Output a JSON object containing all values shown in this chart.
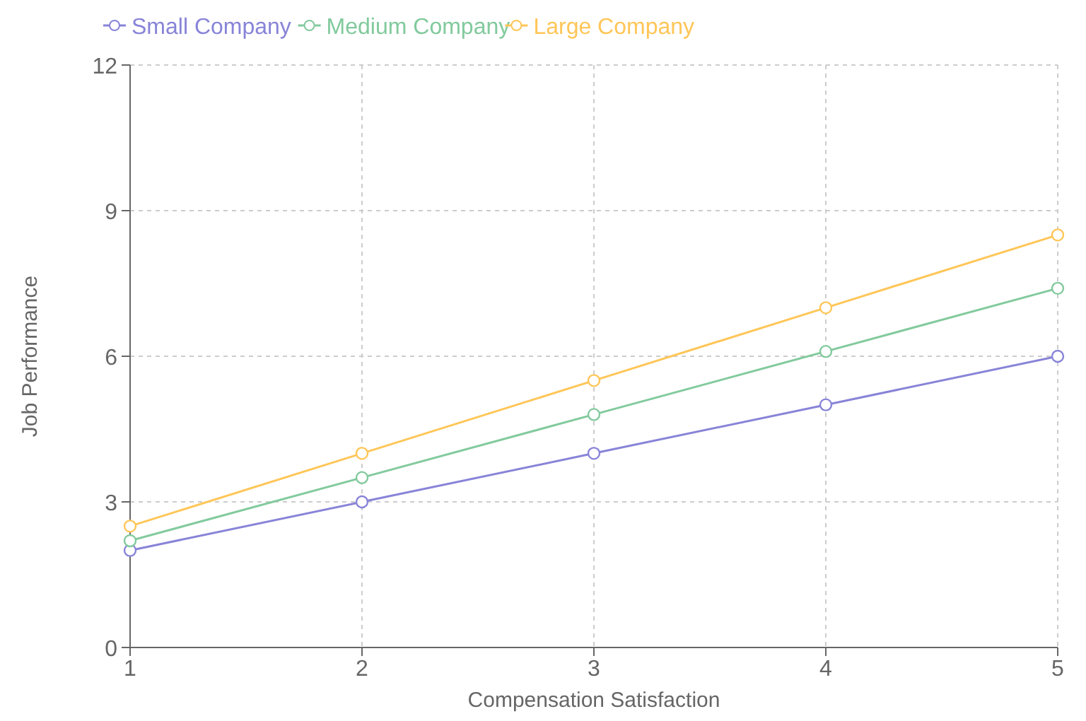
{
  "chart_data": {
    "type": "line",
    "xlabel": "Compensation Satisfaction",
    "ylabel": "Job Performance",
    "x": [
      1,
      2,
      3,
      4,
      5
    ],
    "series": [
      {
        "name": "Small Company",
        "color": "#8884d8",
        "values": [
          2,
          3,
          4,
          5,
          6
        ]
      },
      {
        "name": "Medium Company",
        "color": "#82ca9d",
        "values": [
          2.2,
          3.5,
          4.8,
          6.1,
          7.4
        ]
      },
      {
        "name": "Large Company",
        "color": "#ffc658",
        "values": [
          2.5,
          4,
          5.5,
          7,
          8.5
        ]
      }
    ],
    "xlim": [
      1,
      5
    ],
    "xticks": [
      1,
      2,
      3,
      4,
      5
    ],
    "ylim": [
      0,
      12
    ],
    "yticks": [
      0,
      3,
      6,
      9,
      12
    ],
    "grid": true,
    "legend": "top",
    "marker": "circle",
    "line_style": "solid"
  }
}
